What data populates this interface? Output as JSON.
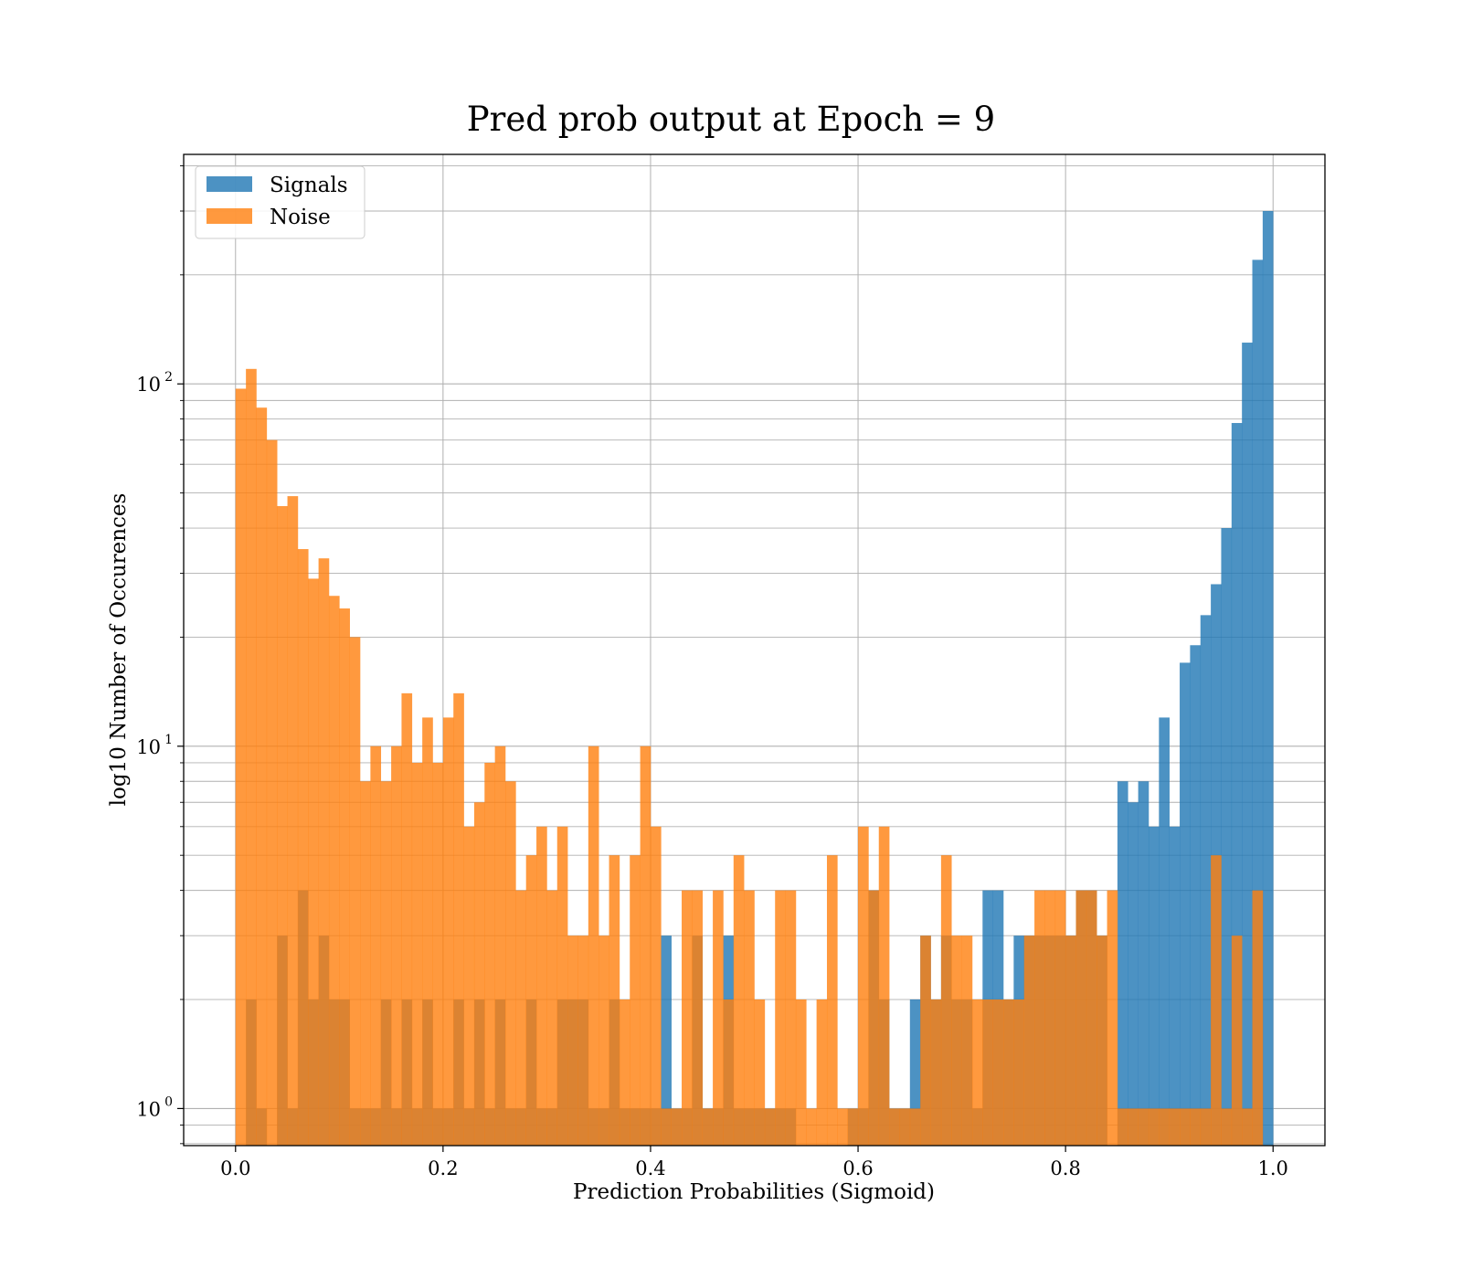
{
  "chart_data": {
    "type": "bar",
    "title": "Pred prob output at Epoch = 9",
    "xlabel": "Prediction Probabilities (Sigmoid)",
    "ylabel": "log10 Number of Occurences",
    "xlim": [
      -0.05,
      1.05
    ],
    "ylim": [
      0.79,
      430
    ],
    "yscale": "log",
    "grid": true,
    "legend": "upper-left",
    "xticks": [
      {
        "value": 0.0,
        "label": "0.0"
      },
      {
        "value": 0.2,
        "label": "0.2"
      },
      {
        "value": 0.4,
        "label": "0.4"
      },
      {
        "value": 0.6,
        "label": "0.6"
      },
      {
        "value": 0.8,
        "label": "0.8"
      },
      {
        "value": 1.0,
        "label": "1.0"
      }
    ],
    "yticks": [
      {
        "value": 1,
        "base": "10",
        "exp": "0"
      },
      {
        "value": 10,
        "base": "10",
        "exp": "1"
      },
      {
        "value": 100,
        "base": "10",
        "exp": "2"
      }
    ],
    "bins": {
      "start": 0.0,
      "width": 0.01,
      "count": 100
    },
    "series": [
      {
        "name": "Signals",
        "color": "#1f77b4",
        "values": [
          0,
          2,
          1,
          0,
          3,
          1,
          4,
          2,
          3,
          2,
          2,
          1,
          1,
          1,
          2,
          1,
          2,
          1,
          2,
          1,
          1,
          2,
          1,
          2,
          1,
          2,
          1,
          1,
          2,
          1,
          1,
          2,
          2,
          2,
          1,
          1,
          2,
          1,
          1,
          1,
          1,
          3,
          1,
          1,
          3,
          1,
          1,
          3,
          1,
          1,
          1,
          1,
          1,
          1,
          0,
          0,
          0,
          0,
          0,
          1,
          1,
          4,
          2,
          1,
          1,
          2,
          3,
          2,
          3,
          2,
          2,
          1,
          4,
          4,
          2,
          3,
          3,
          3,
          3,
          3,
          3,
          4,
          4,
          3,
          0,
          8,
          7,
          8,
          6,
          12,
          6,
          17,
          19,
          23,
          28,
          40,
          78,
          130,
          220,
          300
        ]
      },
      {
        "name": "Noise",
        "color": "#ff7f0e",
        "values": [
          97,
          110,
          86,
          70,
          46,
          49,
          35,
          29,
          33,
          26,
          24,
          20,
          8,
          10,
          8,
          10,
          14,
          9,
          12,
          9,
          12,
          14,
          6,
          7,
          9,
          10,
          8,
          4,
          5,
          6,
          4,
          6,
          3,
          3,
          10,
          3,
          5,
          2,
          5,
          10,
          6,
          1,
          1,
          4,
          4,
          1,
          4,
          2,
          5,
          4,
          2,
          1,
          4,
          4,
          2,
          1,
          2,
          5,
          1,
          1,
          6,
          4,
          6,
          1,
          1,
          1,
          3,
          2,
          5,
          3,
          3,
          2,
          2,
          2,
          2,
          2,
          3,
          4,
          4,
          4,
          3,
          4,
          4,
          3,
          4,
          1,
          1,
          1,
          1,
          1,
          1,
          1,
          1,
          1,
          5,
          1,
          3,
          1,
          4,
          0
        ]
      }
    ]
  }
}
